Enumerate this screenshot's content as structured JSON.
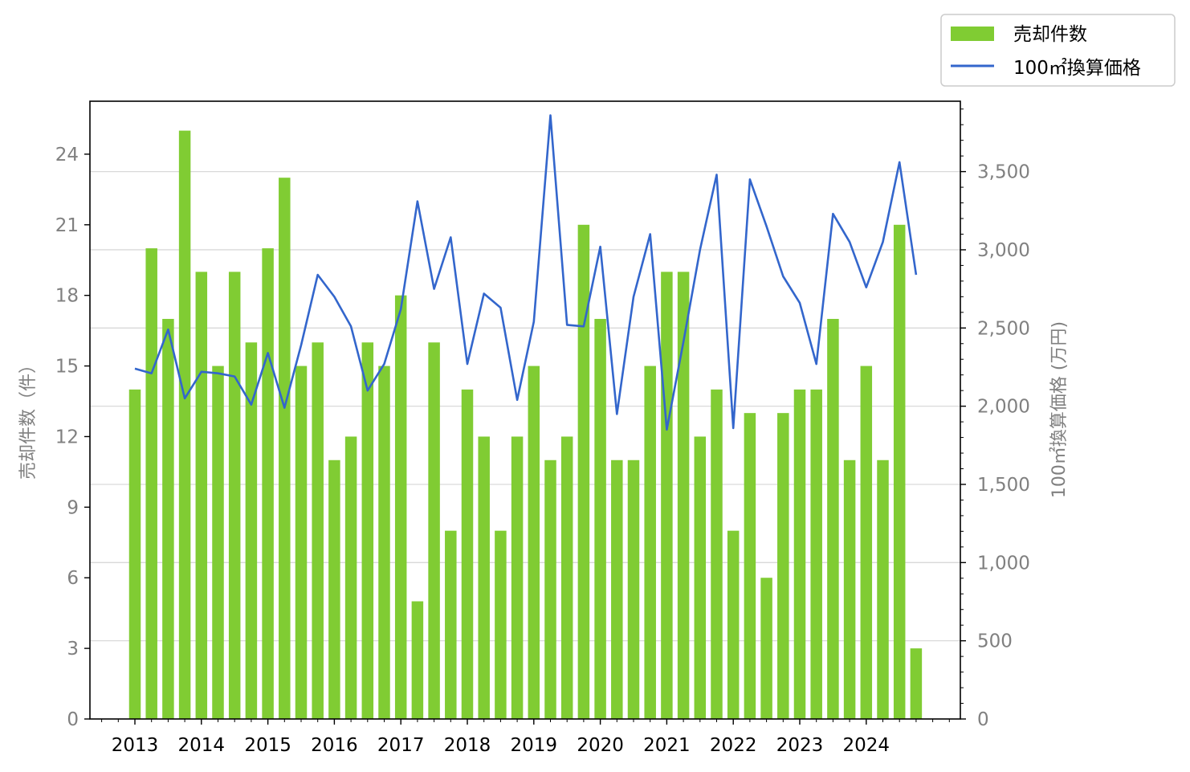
{
  "chart_data": {
    "type": "bar",
    "left_axis": {
      "label": "売却件数（件）",
      "ylim": [
        0,
        26.25
      ],
      "ticks": [
        "0",
        "3",
        "6",
        "9",
        "12",
        "15",
        "18",
        "21",
        "24"
      ]
    },
    "right_axis": {
      "label": "100㎡換算価格 (万円)",
      "ylim": [
        0,
        3950
      ],
      "ticks": [
        "0",
        "500",
        "1,000",
        "1,500",
        "2,000",
        "2,500",
        "3,000",
        "3,500"
      ]
    },
    "x_axis": {
      "year_labels": [
        "2013",
        "2014",
        "2015",
        "2016",
        "2017",
        "2018",
        "2019",
        "2020",
        "2021",
        "2022",
        "2023",
        "2024"
      ]
    },
    "legend": {
      "placement": "top-right outside",
      "bars_label": "売却件数",
      "line_label": "100㎡換算価格"
    },
    "grid": "horizontal (right axis)",
    "colors": {
      "bars": "#80cc33",
      "line": "#3366cc"
    },
    "series": [
      {
        "name": "売却件数",
        "type": "bar",
        "axis": "left",
        "values": [
          14,
          20,
          17,
          25,
          19,
          15,
          19,
          16,
          20,
          23,
          15,
          16,
          11,
          12,
          16,
          15,
          18,
          5,
          16,
          8,
          14,
          12,
          8,
          12,
          15,
          11,
          12,
          21,
          17,
          11,
          11,
          15,
          19,
          19,
          12,
          14,
          8,
          13,
          6,
          13,
          14,
          14,
          17,
          11,
          15,
          11,
          21,
          3
        ]
      },
      {
        "name": "100㎡換算価格",
        "type": "line",
        "axis": "right",
        "values": [
          2240,
          2210,
          2490,
          2050,
          2220,
          2210,
          2190,
          2010,
          2340,
          1990,
          2390,
          2840,
          2700,
          2510,
          2100,
          2270,
          2620,
          3310,
          2750,
          3080,
          2270,
          2720,
          2630,
          2040,
          2540,
          3860,
          2520,
          2510,
          3020,
          1950,
          2700,
          3100,
          1850,
          2410,
          3000,
          3480,
          1860,
          3450,
          3150,
          2830,
          2660,
          2270,
          3230,
          3050,
          2760,
          3050,
          3560,
          2840
        ]
      }
    ]
  }
}
